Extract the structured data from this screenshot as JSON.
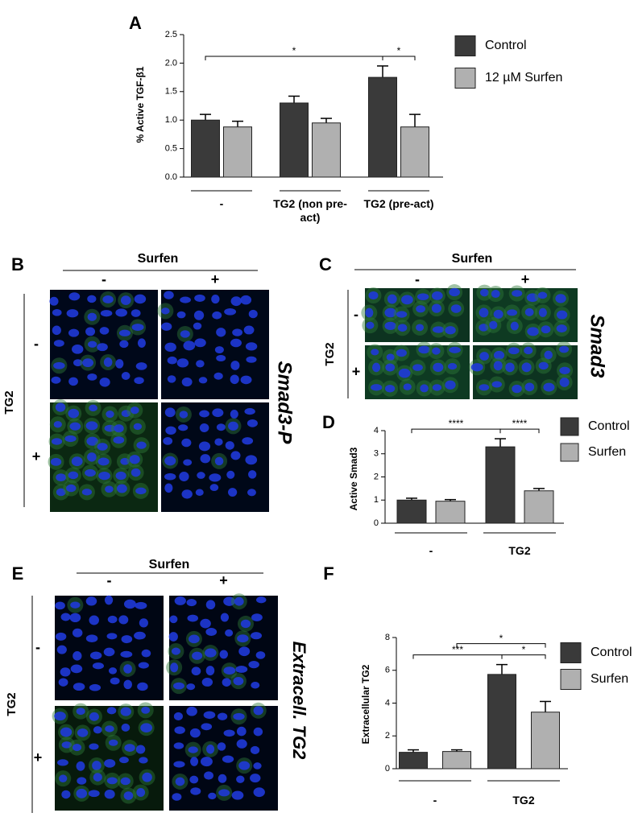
{
  "chart_data": [
    {
      "type": "bar",
      "panel": "A",
      "ylabel": "% Active TGF-β1",
      "categories": [
        "-",
        "TG2 (non pre-act)",
        "TG2 (pre-act)"
      ],
      "series": [
        {
          "name": "Control",
          "color": "#3a3a3a",
          "values": [
            1.0,
            1.3,
            1.75
          ],
          "errors": [
            0.1,
            0.12,
            0.2
          ]
        },
        {
          "name": "12 µM Surfen",
          "color": "#b0b0b0",
          "values": [
            0.88,
            0.95,
            0.88
          ],
          "errors": [
            0.1,
            0.08,
            0.22
          ]
        }
      ],
      "ylim": [
        0,
        2.5
      ],
      "yticks": [
        {
          "value": 0,
          "label": "0.0"
        },
        {
          "value": 0.5,
          "label": "0.5"
        },
        {
          "value": 1,
          "label": "1.0"
        },
        {
          "value": 1.5,
          "label": "1.5"
        },
        {
          "value": 2,
          "label": "2.0"
        },
        {
          "value": 2.5,
          "label": "2.5"
        }
      ],
      "significance": [
        {
          "label": "*",
          "bars": [
            [
              0,
              0
            ],
            [
              0,
              2
            ]
          ]
        },
        {
          "label": "*",
          "bars": [
            [
              0,
              2
            ],
            [
              1,
              2
            ]
          ]
        }
      ],
      "legend": "right"
    },
    {
      "type": "bar",
      "panel": "D",
      "ylabel": "Active Smad3",
      "categories": [
        "-",
        "TG2"
      ],
      "series": [
        {
          "name": "Control",
          "color": "#3a3a3a",
          "values": [
            1.0,
            3.3
          ],
          "errors": [
            0.08,
            0.35
          ]
        },
        {
          "name": "Surfen",
          "color": "#b0b0b0",
          "values": [
            0.95,
            1.4
          ],
          "errors": [
            0.07,
            0.1
          ]
        }
      ],
      "ylim": [
        0,
        4
      ],
      "yticks": [
        0,
        1,
        2,
        3,
        4
      ],
      "significance": [
        {
          "label": "****",
          "bars": [
            [
              0,
              0
            ],
            [
              0,
              1
            ]
          ]
        },
        {
          "label": "****",
          "bars": [
            [
              0,
              1
            ],
            [
              1,
              1
            ]
          ]
        }
      ],
      "legend": "right"
    },
    {
      "type": "bar",
      "panel": "F",
      "ylabel": "Extracellular TG2",
      "categories": [
        "-",
        "TG2"
      ],
      "series": [
        {
          "name": "Control",
          "color": "#3a3a3a",
          "values": [
            1.0,
            5.75
          ],
          "errors": [
            0.15,
            0.6
          ]
        },
        {
          "name": "Surfen",
          "color": "#b0b0b0",
          "values": [
            1.05,
            3.45
          ],
          "errors": [
            0.1,
            0.65
          ]
        }
      ],
      "ylim": [
        0,
        8
      ],
      "yticks": [
        0,
        2,
        4,
        6,
        8
      ],
      "significance": [
        {
          "label": "***",
          "bars": [
            [
              0,
              0
            ],
            [
              0,
              1
            ]
          ]
        },
        {
          "label": "*",
          "bars": [
            [
              0,
              1
            ],
            [
              1,
              1
            ]
          ]
        },
        {
          "label": "*",
          "bars": [
            [
              1,
              0
            ],
            [
              1,
              1
            ]
          ]
        }
      ],
      "legend": "right"
    }
  ],
  "image_panels": [
    {
      "label": "B",
      "header": "Surfen",
      "columns": [
        "-",
        "+"
      ],
      "row_title": "TG2",
      "rows": [
        "-",
        "+"
      ],
      "stain": "Smad3-P"
    },
    {
      "label": "C",
      "header": "Surfen",
      "columns": [
        "-",
        "+"
      ],
      "row_title": "TG2",
      "rows": [
        "-",
        "+"
      ],
      "stain": "Smad3"
    },
    {
      "label": "E",
      "header": "Surfen",
      "columns": [
        "-",
        "+"
      ],
      "row_title": "TG2",
      "rows": [
        "-",
        "+"
      ],
      "stain": "Extracell. TG2"
    }
  ]
}
